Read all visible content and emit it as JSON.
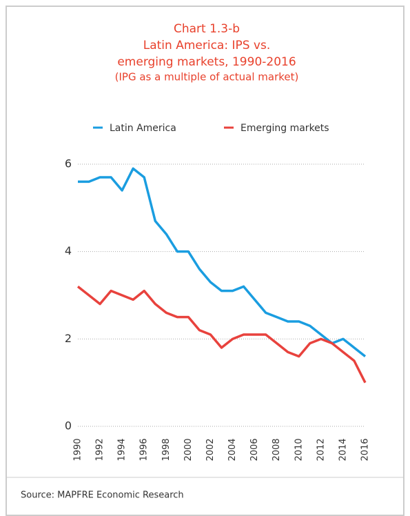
{
  "chart_data": {
    "type": "line",
    "title": "Chart 1.3-b",
    "subtitle": [
      "Latin America: IPS vs.",
      "emerging markets, 1990-2016",
      "(IPG as a multiple of actual market)"
    ],
    "source": "Source: MAPFRE Economic Research",
    "x": [
      1990,
      1991,
      1992,
      1993,
      1994,
      1995,
      1996,
      1997,
      1998,
      1999,
      2000,
      2001,
      2002,
      2003,
      2004,
      2005,
      2006,
      2007,
      2008,
      2009,
      2010,
      2011,
      2012,
      2013,
      2014,
      2015,
      2016
    ],
    "xlim": [
      1990,
      2016
    ],
    "xticks": [
      1990,
      1992,
      1994,
      1996,
      1998,
      2000,
      2002,
      2004,
      2006,
      2008,
      2010,
      2012,
      2014,
      2016
    ],
    "ylim": [
      0,
      6
    ],
    "yticks": [
      0,
      2,
      4,
      6
    ],
    "grid": true,
    "series": [
      {
        "name": "Latin America",
        "color": "#1a9de0",
        "values": [
          5.6,
          5.6,
          5.7,
          5.7,
          5.4,
          5.9,
          5.7,
          4.7,
          4.4,
          4.0,
          4.0,
          3.6,
          3.3,
          3.1,
          3.1,
          3.2,
          2.9,
          2.6,
          2.5,
          2.4,
          2.4,
          2.3,
          2.1,
          1.9,
          2.0,
          1.8,
          1.6
        ]
      },
      {
        "name": "Emerging markets",
        "color": "#e8423d",
        "values": [
          3.2,
          3.0,
          2.8,
          3.1,
          3.0,
          2.9,
          3.1,
          2.8,
          2.6,
          2.5,
          2.5,
          2.2,
          2.1,
          1.8,
          2.0,
          2.1,
          2.1,
          2.1,
          1.9,
          1.7,
          1.6,
          1.9,
          2.0,
          1.9,
          1.7,
          1.5,
          1.0
        ]
      }
    ]
  }
}
